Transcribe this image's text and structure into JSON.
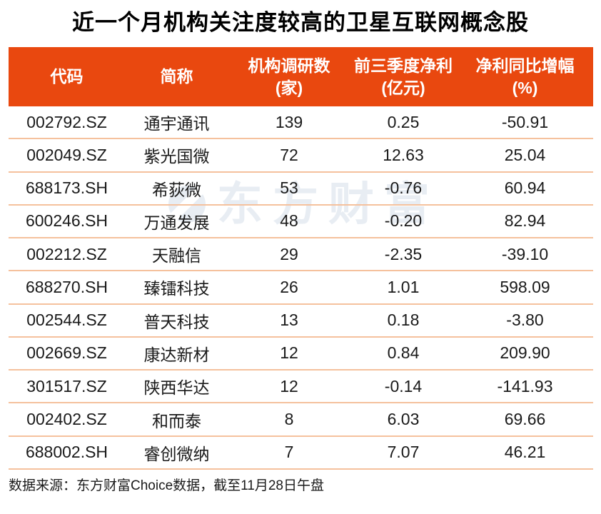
{
  "title": "近一个月机构关注度较高的卫星互联网概念股",
  "chart_data": {
    "type": "table",
    "title": "近一个月机构关注度较高的卫星互联网概念股",
    "columns": [
      {
        "label": "代码",
        "unit": ""
      },
      {
        "label": "简称",
        "unit": ""
      },
      {
        "label": "机构调研数",
        "unit": "(家)"
      },
      {
        "label": "前三季度净利",
        "unit": "(亿元)"
      },
      {
        "label": "净利同比增幅",
        "unit": "(%)"
      }
    ],
    "rows": [
      [
        "002792.SZ",
        "通宇通讯",
        "139",
        "0.25",
        "-50.91"
      ],
      [
        "002049.SZ",
        "紫光国微",
        "72",
        "12.63",
        "25.04"
      ],
      [
        "688173.SH",
        "希荻微",
        "53",
        "-0.76",
        "60.94"
      ],
      [
        "600246.SH",
        "万通发展",
        "48",
        "-0.20",
        "82.94"
      ],
      [
        "002212.SZ",
        "天融信",
        "29",
        "-2.35",
        "-39.10"
      ],
      [
        "688270.SH",
        "臻镭科技",
        "26",
        "1.01",
        "598.09"
      ],
      [
        "002544.SZ",
        "普天科技",
        "13",
        "0.18",
        "-3.80"
      ],
      [
        "002669.SZ",
        "康达新材",
        "12",
        "0.84",
        "209.90"
      ],
      [
        "301517.SZ",
        "陕西华达",
        "12",
        "-0.14",
        "-141.93"
      ],
      [
        "002402.SZ",
        "和而泰",
        "8",
        "6.03",
        "69.66"
      ],
      [
        "688002.SH",
        "睿创微纳",
        "7",
        "7.07",
        "46.21"
      ]
    ]
  },
  "watermark": {
    "text": "东方财富"
  },
  "footer": {
    "text": "数据来源：东方财富Choice数据，截至11月28日午盘"
  },
  "colors": {
    "header_bg": "#E9480F",
    "divider": "#F5C19D",
    "title_text": "#000000",
    "body_text": "#1A1A1A",
    "header_text": "#FFFFFF",
    "watermark": "#E8EDF3"
  }
}
